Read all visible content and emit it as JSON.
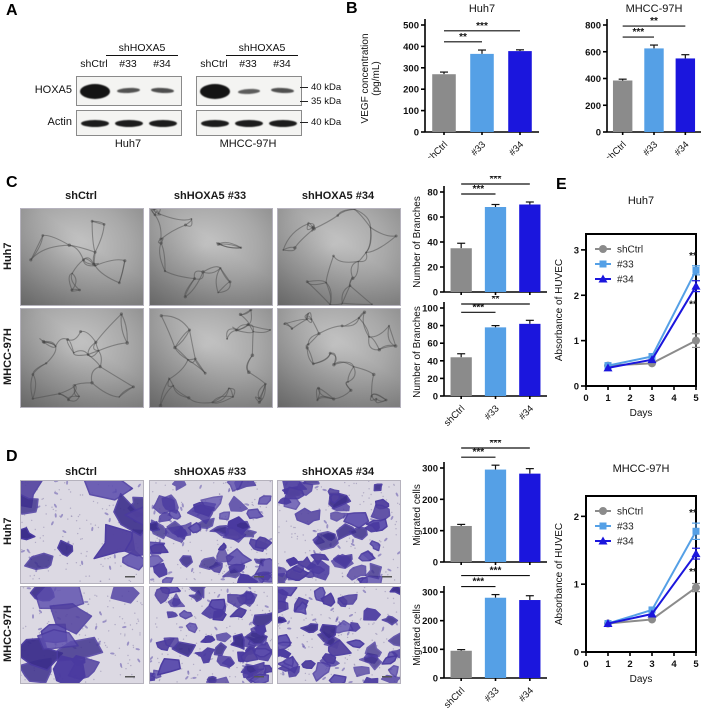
{
  "colors": {
    "gray": "#8b8b8b",
    "light_blue": "#55a0e6",
    "dark_blue": "#1b16dd",
    "axis": "#000000",
    "purple_cells": "#4a3aa0",
    "image_bg_gray": "#a8a8a8",
    "image_bg_lavender": "#dcd9e3"
  },
  "panel_a": {
    "label": "A",
    "protein_labels": [
      "HOXA5",
      "Actin"
    ],
    "knockdown_group_label": "shHOXA5",
    "lane_labels": [
      "shCtrl",
      "#33",
      "#34"
    ],
    "cell_lines": [
      "Huh7",
      "MHCC-97H"
    ],
    "size_markers": [
      "40 kDa",
      "35 kDa",
      "40 kDa"
    ],
    "band_intensity": {
      "HOXA5": [
        [
          1,
          0.38,
          0.42
        ],
        [
          1,
          0.28,
          0.4
        ]
      ],
      "Actin": [
        [
          0.9,
          0.9,
          0.9
        ],
        [
          0.9,
          0.9,
          0.9
        ]
      ]
    }
  },
  "panel_b": {
    "label": "B"
  },
  "panel_c": {
    "label": "C",
    "col_headers": [
      "shCtrl",
      "shHOXA5 #33",
      "shHOXA5 #34"
    ],
    "row_labels": [
      "Huh7",
      "MHCC-97H"
    ]
  },
  "panel_d": {
    "label": "D",
    "col_headers": [
      "shCtrl",
      "shHOXA5 #33",
      "shHOXA5 #34"
    ],
    "row_labels": [
      "Huh7",
      "MHCC-97H"
    ]
  },
  "panel_e": {
    "label": "E",
    "legend": [
      "shCtrl",
      "#33",
      "#34"
    ]
  },
  "chart_data": [
    {
      "id": "vegf_huh7",
      "type": "bar",
      "title": "Huh7",
      "ylabel": [
        "VEGF concentration",
        "(pg/mL)"
      ],
      "categories": [
        "shCtrl",
        "#33",
        "#34"
      ],
      "values": [
        270,
        365,
        378
      ],
      "errors": [
        10,
        18,
        6
      ],
      "ylim": [
        0,
        500
      ],
      "yticks": [
        0,
        100,
        200,
        300,
        400,
        500
      ],
      "bar_colors": [
        "gray",
        "light_blue",
        "dark_blue"
      ],
      "show_x_labels": true,
      "significance": [
        {
          "pair": [
            0,
            1
          ],
          "label": "**"
        },
        {
          "pair": [
            0,
            2
          ],
          "label": "***"
        }
      ]
    },
    {
      "id": "vegf_mhcc97h",
      "type": "bar",
      "title": "MHCC-97H",
      "ylabel": [],
      "categories": [
        "shCtrl",
        "#33",
        "#34"
      ],
      "values": [
        385,
        625,
        550
      ],
      "errors": [
        10,
        25,
        28
      ],
      "ylim": [
        0,
        800
      ],
      "yticks": [
        0,
        200,
        400,
        600,
        800
      ],
      "bar_colors": [
        "gray",
        "light_blue",
        "dark_blue"
      ],
      "show_x_labels": true,
      "significance": [
        {
          "pair": [
            0,
            1
          ],
          "label": "***"
        },
        {
          "pair": [
            0,
            2
          ],
          "label": "**"
        }
      ]
    },
    {
      "id": "branches_huh7",
      "type": "bar",
      "title": "",
      "ylabel": [
        "Number of Branches"
      ],
      "categories": [
        "shCtrl",
        "#33",
        "#34"
      ],
      "values": [
        35,
        68,
        70
      ],
      "errors": [
        4,
        2,
        2
      ],
      "ylim": [
        0,
        80
      ],
      "yticks": [
        0,
        20,
        40,
        60,
        80
      ],
      "bar_colors": [
        "gray",
        "light_blue",
        "dark_blue"
      ],
      "show_x_labels": false,
      "significance": [
        {
          "pair": [
            0,
            1
          ],
          "label": "***"
        },
        {
          "pair": [
            0,
            2
          ],
          "label": "***"
        }
      ]
    },
    {
      "id": "branches_mhcc97h",
      "type": "bar",
      "title": "",
      "ylabel": [
        "Number of Branches"
      ],
      "categories": [
        "shCtrl",
        "#33",
        "#34"
      ],
      "values": [
        44,
        78,
        82
      ],
      "errors": [
        4,
        2,
        4
      ],
      "ylim": [
        0,
        100
      ],
      "yticks": [
        0,
        20,
        40,
        60,
        80,
        100
      ],
      "bar_colors": [
        "gray",
        "light_blue",
        "dark_blue"
      ],
      "show_x_labels": true,
      "significance": [
        {
          "pair": [
            0,
            1
          ],
          "label": "***"
        },
        {
          "pair": [
            0,
            2
          ],
          "label": "**"
        }
      ]
    },
    {
      "id": "migrated_huh7",
      "type": "bar",
      "title": "",
      "ylabel": [
        "Migrated cells"
      ],
      "categories": [
        "shCtrl",
        "#33",
        "#34"
      ],
      "values": [
        115,
        295,
        282
      ],
      "errors": [
        5,
        14,
        16
      ],
      "ylim": [
        0,
        300
      ],
      "yticks": [
        0,
        100,
        200,
        300
      ],
      "bar_colors": [
        "gray",
        "light_blue",
        "dark_blue"
      ],
      "show_x_labels": false,
      "significance": [
        {
          "pair": [
            0,
            1
          ],
          "label": "***"
        },
        {
          "pair": [
            0,
            2
          ],
          "label": "***"
        }
      ]
    },
    {
      "id": "migrated_mhcc97h",
      "type": "bar",
      "title": "",
      "ylabel": [
        "Migrated cells"
      ],
      "categories": [
        "shCtrl",
        "#33",
        "#34"
      ],
      "values": [
        95,
        280,
        272
      ],
      "errors": [
        4,
        11,
        15
      ],
      "ylim": [
        0,
        300
      ],
      "yticks": [
        0,
        100,
        200,
        300
      ],
      "bar_colors": [
        "gray",
        "light_blue",
        "dark_blue"
      ],
      "show_x_labels": true,
      "significance": [
        {
          "pair": [
            0,
            1
          ],
          "label": "***"
        },
        {
          "pair": [
            0,
            2
          ],
          "label": "***"
        }
      ]
    },
    {
      "id": "huvec_huh7",
      "type": "line",
      "title": "Huh7",
      "ylabel": "Absorbance of HUVEC",
      "xlabel": "Days",
      "x": [
        1,
        3,
        5
      ],
      "xticks": [
        0,
        1,
        2,
        3,
        4,
        5
      ],
      "ylim": [
        0,
        3.35
      ],
      "yticks": [
        0,
        1,
        2,
        3
      ],
      "series": [
        {
          "name": "shCtrl",
          "color": "gray",
          "marker": "circle",
          "values": [
            0.45,
            0.5,
            1.0
          ],
          "error_last": 0.15
        },
        {
          "name": "#33",
          "color": "light_blue",
          "marker": "square",
          "values": [
            0.45,
            0.65,
            2.55
          ],
          "error_last": 0.1
        },
        {
          "name": "#34",
          "color": "dark_blue",
          "marker": "triangle",
          "values": [
            0.4,
            0.58,
            2.2
          ],
          "error_last": 0.12
        }
      ],
      "significance": [
        {
          "series": "#33",
          "label": "**",
          "position": "above"
        },
        {
          "series": "#34",
          "label": "**",
          "position": "below"
        }
      ]
    },
    {
      "id": "huvec_mhcc97h",
      "type": "line",
      "title": "MHCC-97H",
      "ylabel": "Absorbance of HUVEC",
      "xlabel": "Days",
      "x": [
        1,
        3,
        5
      ],
      "xticks": [
        0,
        1,
        2,
        3,
        4,
        5
      ],
      "ylim": [
        0,
        2.3
      ],
      "yticks": [
        0,
        1,
        2
      ],
      "series": [
        {
          "name": "shCtrl",
          "color": "gray",
          "marker": "circle",
          "values": [
            0.42,
            0.48,
            0.95
          ],
          "error_last": 0.06
        },
        {
          "name": "#33",
          "color": "light_blue",
          "marker": "square",
          "values": [
            0.42,
            0.62,
            1.78
          ],
          "error_last": 0.12
        },
        {
          "name": "#34",
          "color": "dark_blue",
          "marker": "triangle",
          "values": [
            0.42,
            0.56,
            1.45
          ],
          "error_last": 0.08
        }
      ],
      "significance": [
        {
          "series": "#33",
          "label": "**",
          "position": "above"
        },
        {
          "series": "#34",
          "label": "**",
          "position": "below"
        }
      ]
    }
  ]
}
